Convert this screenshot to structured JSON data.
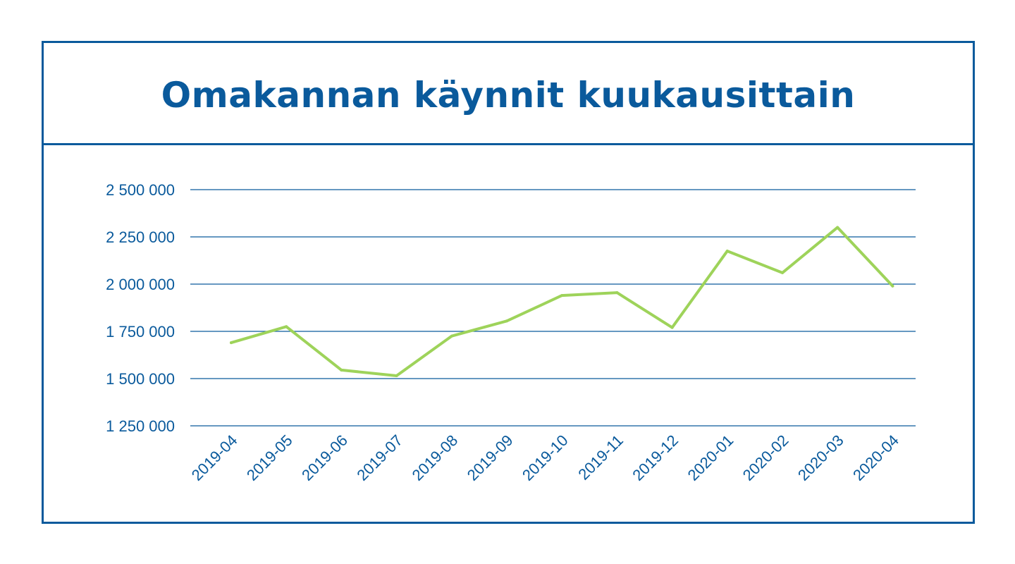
{
  "chart_data": {
    "type": "line",
    "title": "Omakannan käynnit kuukausittain",
    "xlabel": "",
    "ylabel": "",
    "categories": [
      "2019-04",
      "2019-05",
      "2019-06",
      "2019-07",
      "2019-08",
      "2019-09",
      "2019-10",
      "2019-11",
      "2019-12",
      "2020-01",
      "2020-02",
      "2020-03",
      "2020-04"
    ],
    "series": [
      {
        "values": [
          1690000,
          1775000,
          1545000,
          1515000,
          1725000,
          1805000,
          1940000,
          1955000,
          1770000,
          2175000,
          2060000,
          2300000,
          1990000
        ]
      }
    ],
    "ylim": [
      1250000,
      2500000
    ],
    "yticks": [
      1250000,
      1500000,
      1750000,
      2000000,
      2250000,
      2500000
    ],
    "ytick_labels": [
      "1 250 000",
      "1 500 000",
      "1 750 000",
      "2 000 000",
      "2 250 000",
      "2 500 000"
    ],
    "grid": true,
    "legend": "none",
    "colors": {
      "line": "#9ed35a",
      "grid": "#0a5a9c",
      "text": "#0a5a9c",
      "border": "#0a5a9c"
    }
  }
}
